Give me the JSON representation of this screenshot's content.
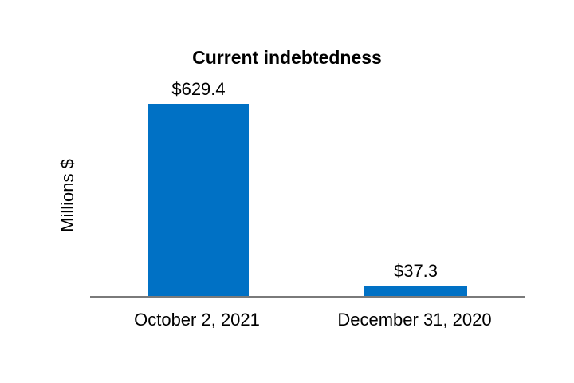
{
  "chart": {
    "background_color": "#FFFFFF",
    "text_color": "#000000",
    "bar_color": "#0071C5",
    "axis_line_color": "#7A7A7A"
  },
  "chart_data": {
    "type": "bar",
    "title": "Current indebtedness",
    "xlabel": "",
    "ylabel": "Millions $",
    "categories": [
      "October 2, 2021",
      "December 31, 2020"
    ],
    "values": [
      629.4,
      37.3
    ],
    "value_labels": [
      "$629.4",
      "$37.3"
    ],
    "ylim": [
      0,
      650
    ],
    "grid": false,
    "legend": false,
    "bar_color": "#0071C5"
  }
}
